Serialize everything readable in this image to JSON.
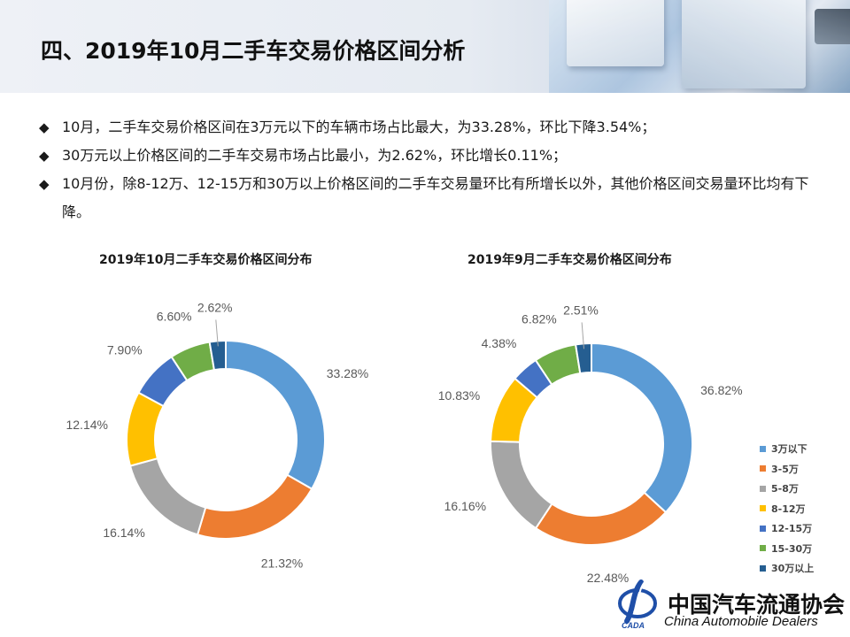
{
  "title": "四、2019年10月二手车交易价格区间分析",
  "bullets": [
    "10月，二手车交易价格区间在3万元以下的车辆市场占比最大，为33.28%，环比下降3.54%；",
    "30万元以上价格区间的二手车交易市场占比最小，为2.62%，环比增长0.11%；",
    "10月份，除8-12万、12-15万和30万以上价格区间的二手车交易量环比有所增长以外，其他价格区间交易量环比均有下降。"
  ],
  "bullet_marker": "◆",
  "colors": {
    "3万以下": "#5B9BD5",
    "3-5万": "#ED7D31",
    "5-8万": "#A5A5A5",
    "8-12万": "#FFC000",
    "12-15万": "#4472C4",
    "15-30万": "#70AD47",
    "30万以上": "#255E91"
  },
  "chart_data": [
    {
      "type": "pie",
      "title": "2019年10月二手车交易价格区间分布",
      "categories": [
        "3万以下",
        "3-5万",
        "5-8万",
        "8-12万",
        "12-15万",
        "15-30万",
        "30万以上"
      ],
      "values": [
        33.28,
        21.32,
        16.14,
        12.14,
        7.9,
        6.6,
        2.62
      ],
      "labels": [
        "33.28%",
        "21.32%",
        "16.14%",
        "12.14%",
        "7.90%",
        "6.60%",
        "2.62%"
      ]
    },
    {
      "type": "pie",
      "title": "2019年9月二手车交易价格区间分布",
      "categories": [
        "3万以下",
        "3-5万",
        "5-8万",
        "8-12万",
        "12-15万",
        "15-30万",
        "30万以上"
      ],
      "values": [
        36.82,
        22.48,
        16.16,
        10.83,
        4.38,
        6.82,
        2.51
      ],
      "labels": [
        "36.82%",
        "22.48%",
        "16.16%",
        "10.83%",
        "4.38%",
        "6.82%",
        "2.51%"
      ]
    }
  ],
  "legend": [
    "3万以下",
    "3-5万",
    "5-8万",
    "8-12万",
    "12-15万",
    "15-30万",
    "30万以上"
  ],
  "logo": {
    "cn": "中国汽车流通协会",
    "en": "China Automobile Dealers",
    "mark_text": "CADA"
  }
}
